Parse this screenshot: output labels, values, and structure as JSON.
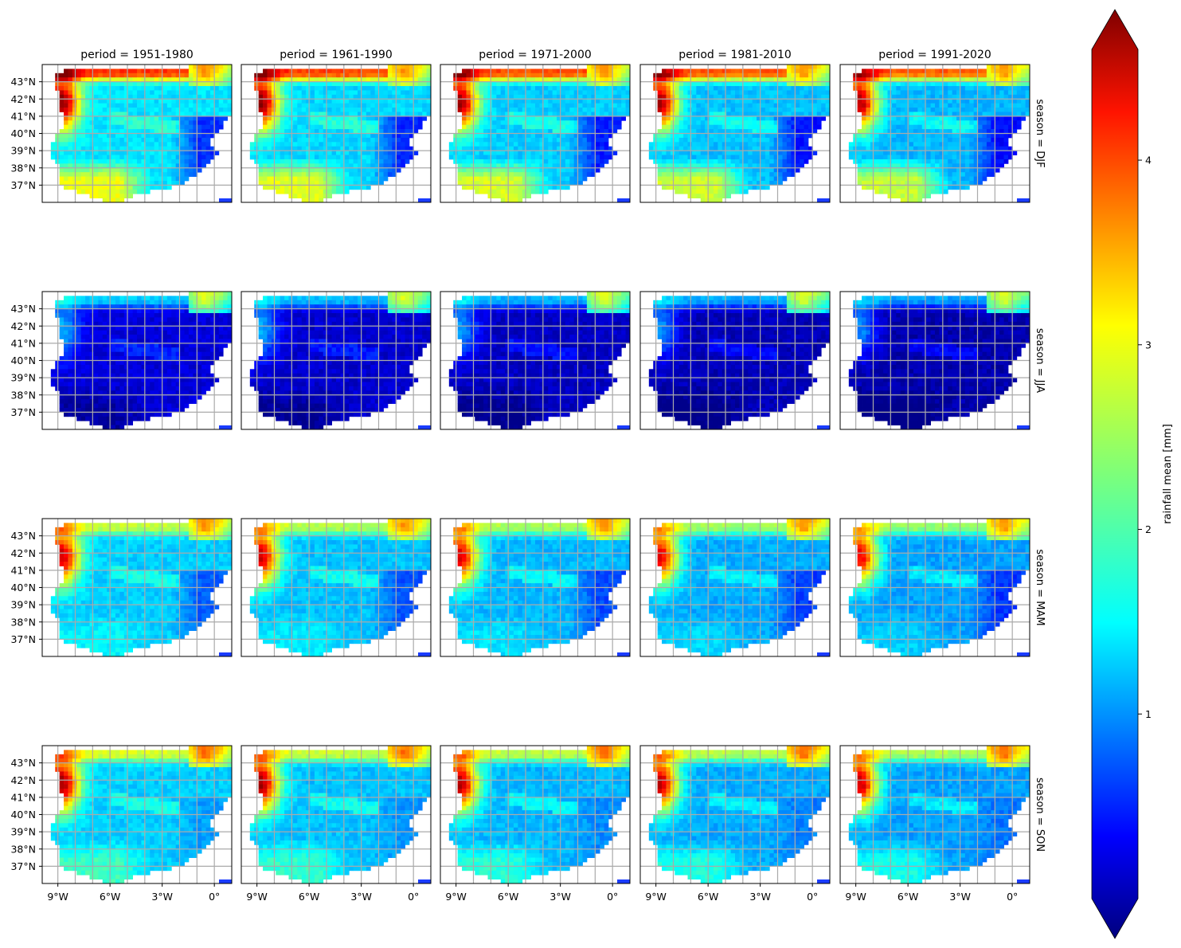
{
  "chart_data": {
    "type": "heatmap",
    "kind": "faceted map grid",
    "col_titles": [
      "period = 1951-1980",
      "period = 1961-1990",
      "period = 1971-2000",
      "period = 1981-2010",
      "period = 1991-2020"
    ],
    "row_titles": [
      "season = DJF",
      "season = JJA",
      "season = MAM",
      "season = SON"
    ],
    "lat_ticks": [
      "43°N",
      "42°N",
      "41°N",
      "40°N",
      "39°N",
      "38°N",
      "37°N"
    ],
    "lat_values": [
      43,
      42,
      41,
      40,
      39,
      38,
      37
    ],
    "lon_ticks": [
      "9°W",
      "6°W",
      "3°W",
      "0°"
    ],
    "lon_values": [
      -9,
      -6,
      -3,
      0
    ],
    "lon_range": [
      -9.9,
      1.0
    ],
    "lat_range": [
      36.0,
      44.0
    ],
    "grid": true,
    "colormap": "jet",
    "colorbar": {
      "label": "rainfall mean [mm]",
      "ticks": [
        "1",
        "2",
        "3",
        "4"
      ],
      "tick_values": [
        1,
        2,
        3,
        4
      ],
      "range": [
        0.0,
        4.6
      ],
      "extend": "both",
      "placement": "right"
    },
    "panel_summary": [
      {
        "season": "DJF",
        "nw_max": 4.6,
        "north_coast": 3.8,
        "interior": 1.6,
        "south": 2.8,
        "east_coast": 0.8,
        "pyrenees": 3.0
      },
      {
        "season": "JJA",
        "nw_max": 1.4,
        "north_coast": 1.5,
        "interior": 0.4,
        "south": 0.15,
        "east_coast": 0.4,
        "pyrenees": 2.3
      },
      {
        "season": "MAM",
        "nw_max": 4.3,
        "north_coast": 2.6,
        "interior": 1.5,
        "south": 1.7,
        "east_coast": 1.0,
        "pyrenees": 3.0
      },
      {
        "season": "SON",
        "nw_max": 4.5,
        "north_coast": 2.7,
        "interior": 1.5,
        "south": 2.0,
        "east_coast": 1.3,
        "pyrenees": 3.2
      }
    ]
  }
}
